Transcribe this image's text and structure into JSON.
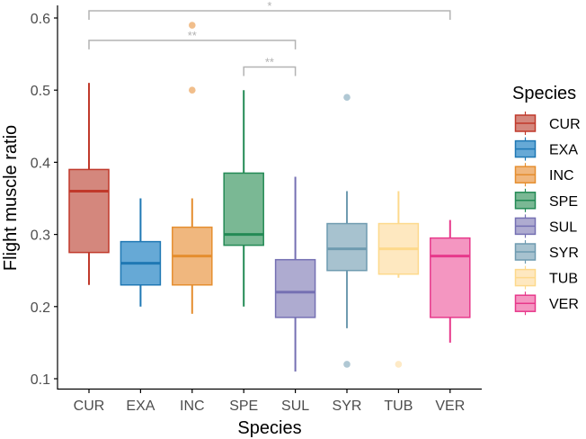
{
  "chart_data": {
    "type": "boxplot",
    "xlabel": "Species",
    "ylabel": "Flight muscle ratio",
    "ylim": [
      0.1,
      0.6
    ],
    "yticks": [
      "0.1",
      "0.2",
      "0.3",
      "0.4",
      "0.5",
      "0.6"
    ],
    "ytick_values": [
      0.1,
      0.2,
      0.3,
      0.4,
      0.5,
      0.6
    ],
    "grid": false,
    "legend": {
      "title": "Species",
      "placement": "right"
    },
    "categories": [
      "CUR",
      "EXA",
      "INC",
      "SPE",
      "SUL",
      "SYR",
      "TUB",
      "VER"
    ],
    "series": [
      {
        "name": "CUR",
        "stroke": "#c0392b",
        "fill": "#d4877d",
        "whisker_low": 0.23,
        "q1": 0.275,
        "median": 0.36,
        "q3": 0.39,
        "whisker_high": 0.51,
        "outliers": []
      },
      {
        "name": "EXA",
        "stroke": "#1f78b4",
        "fill": "#66a9d6",
        "whisker_low": 0.2,
        "q1": 0.23,
        "median": 0.26,
        "q3": 0.29,
        "whisker_high": 0.35,
        "outliers": []
      },
      {
        "name": "INC",
        "stroke": "#e58e2f",
        "fill": "#f0b77e",
        "whisker_low": 0.19,
        "q1": 0.23,
        "median": 0.27,
        "q3": 0.31,
        "whisker_high": 0.35,
        "outliers": [
          0.5,
          0.59
        ]
      },
      {
        "name": "SPE",
        "stroke": "#238a55",
        "fill": "#7ab894",
        "whisker_low": 0.2,
        "q1": 0.285,
        "median": 0.3,
        "q3": 0.385,
        "whisker_high": 0.5,
        "outliers": []
      },
      {
        "name": "SUL",
        "stroke": "#7570b3",
        "fill": "#aeabd0",
        "whisker_low": 0.11,
        "q1": 0.185,
        "median": 0.22,
        "q3": 0.265,
        "whisker_high": 0.38,
        "outliers": []
      },
      {
        "name": "SYR",
        "stroke": "#6f9bb0",
        "fill": "#a7c2cf",
        "whisker_low": 0.17,
        "q1": 0.25,
        "median": 0.28,
        "q3": 0.315,
        "whisker_high": 0.36,
        "outliers": [
          0.49,
          0.12
        ]
      },
      {
        "name": "TUB",
        "stroke": "#fdd98c",
        "fill": "#fee8c0",
        "whisker_low": 0.24,
        "q1": 0.245,
        "median": 0.28,
        "q3": 0.315,
        "whisker_high": 0.36,
        "outliers": [
          0.12
        ]
      },
      {
        "name": "VER",
        "stroke": "#e7398b",
        "fill": "#f496c1",
        "whisker_low": 0.15,
        "q1": 0.185,
        "median": 0.27,
        "q3": 0.295,
        "whisker_high": 0.32,
        "outliers": []
      }
    ],
    "annotations": [
      {
        "from": "CUR",
        "to": "VER",
        "label": "*",
        "level": 0.61
      },
      {
        "from": "CUR",
        "to": "SUL",
        "label": "**",
        "level": 0.569
      },
      {
        "from": "SPE",
        "to": "SUL",
        "label": "**",
        "level": 0.532
      }
    ]
  }
}
